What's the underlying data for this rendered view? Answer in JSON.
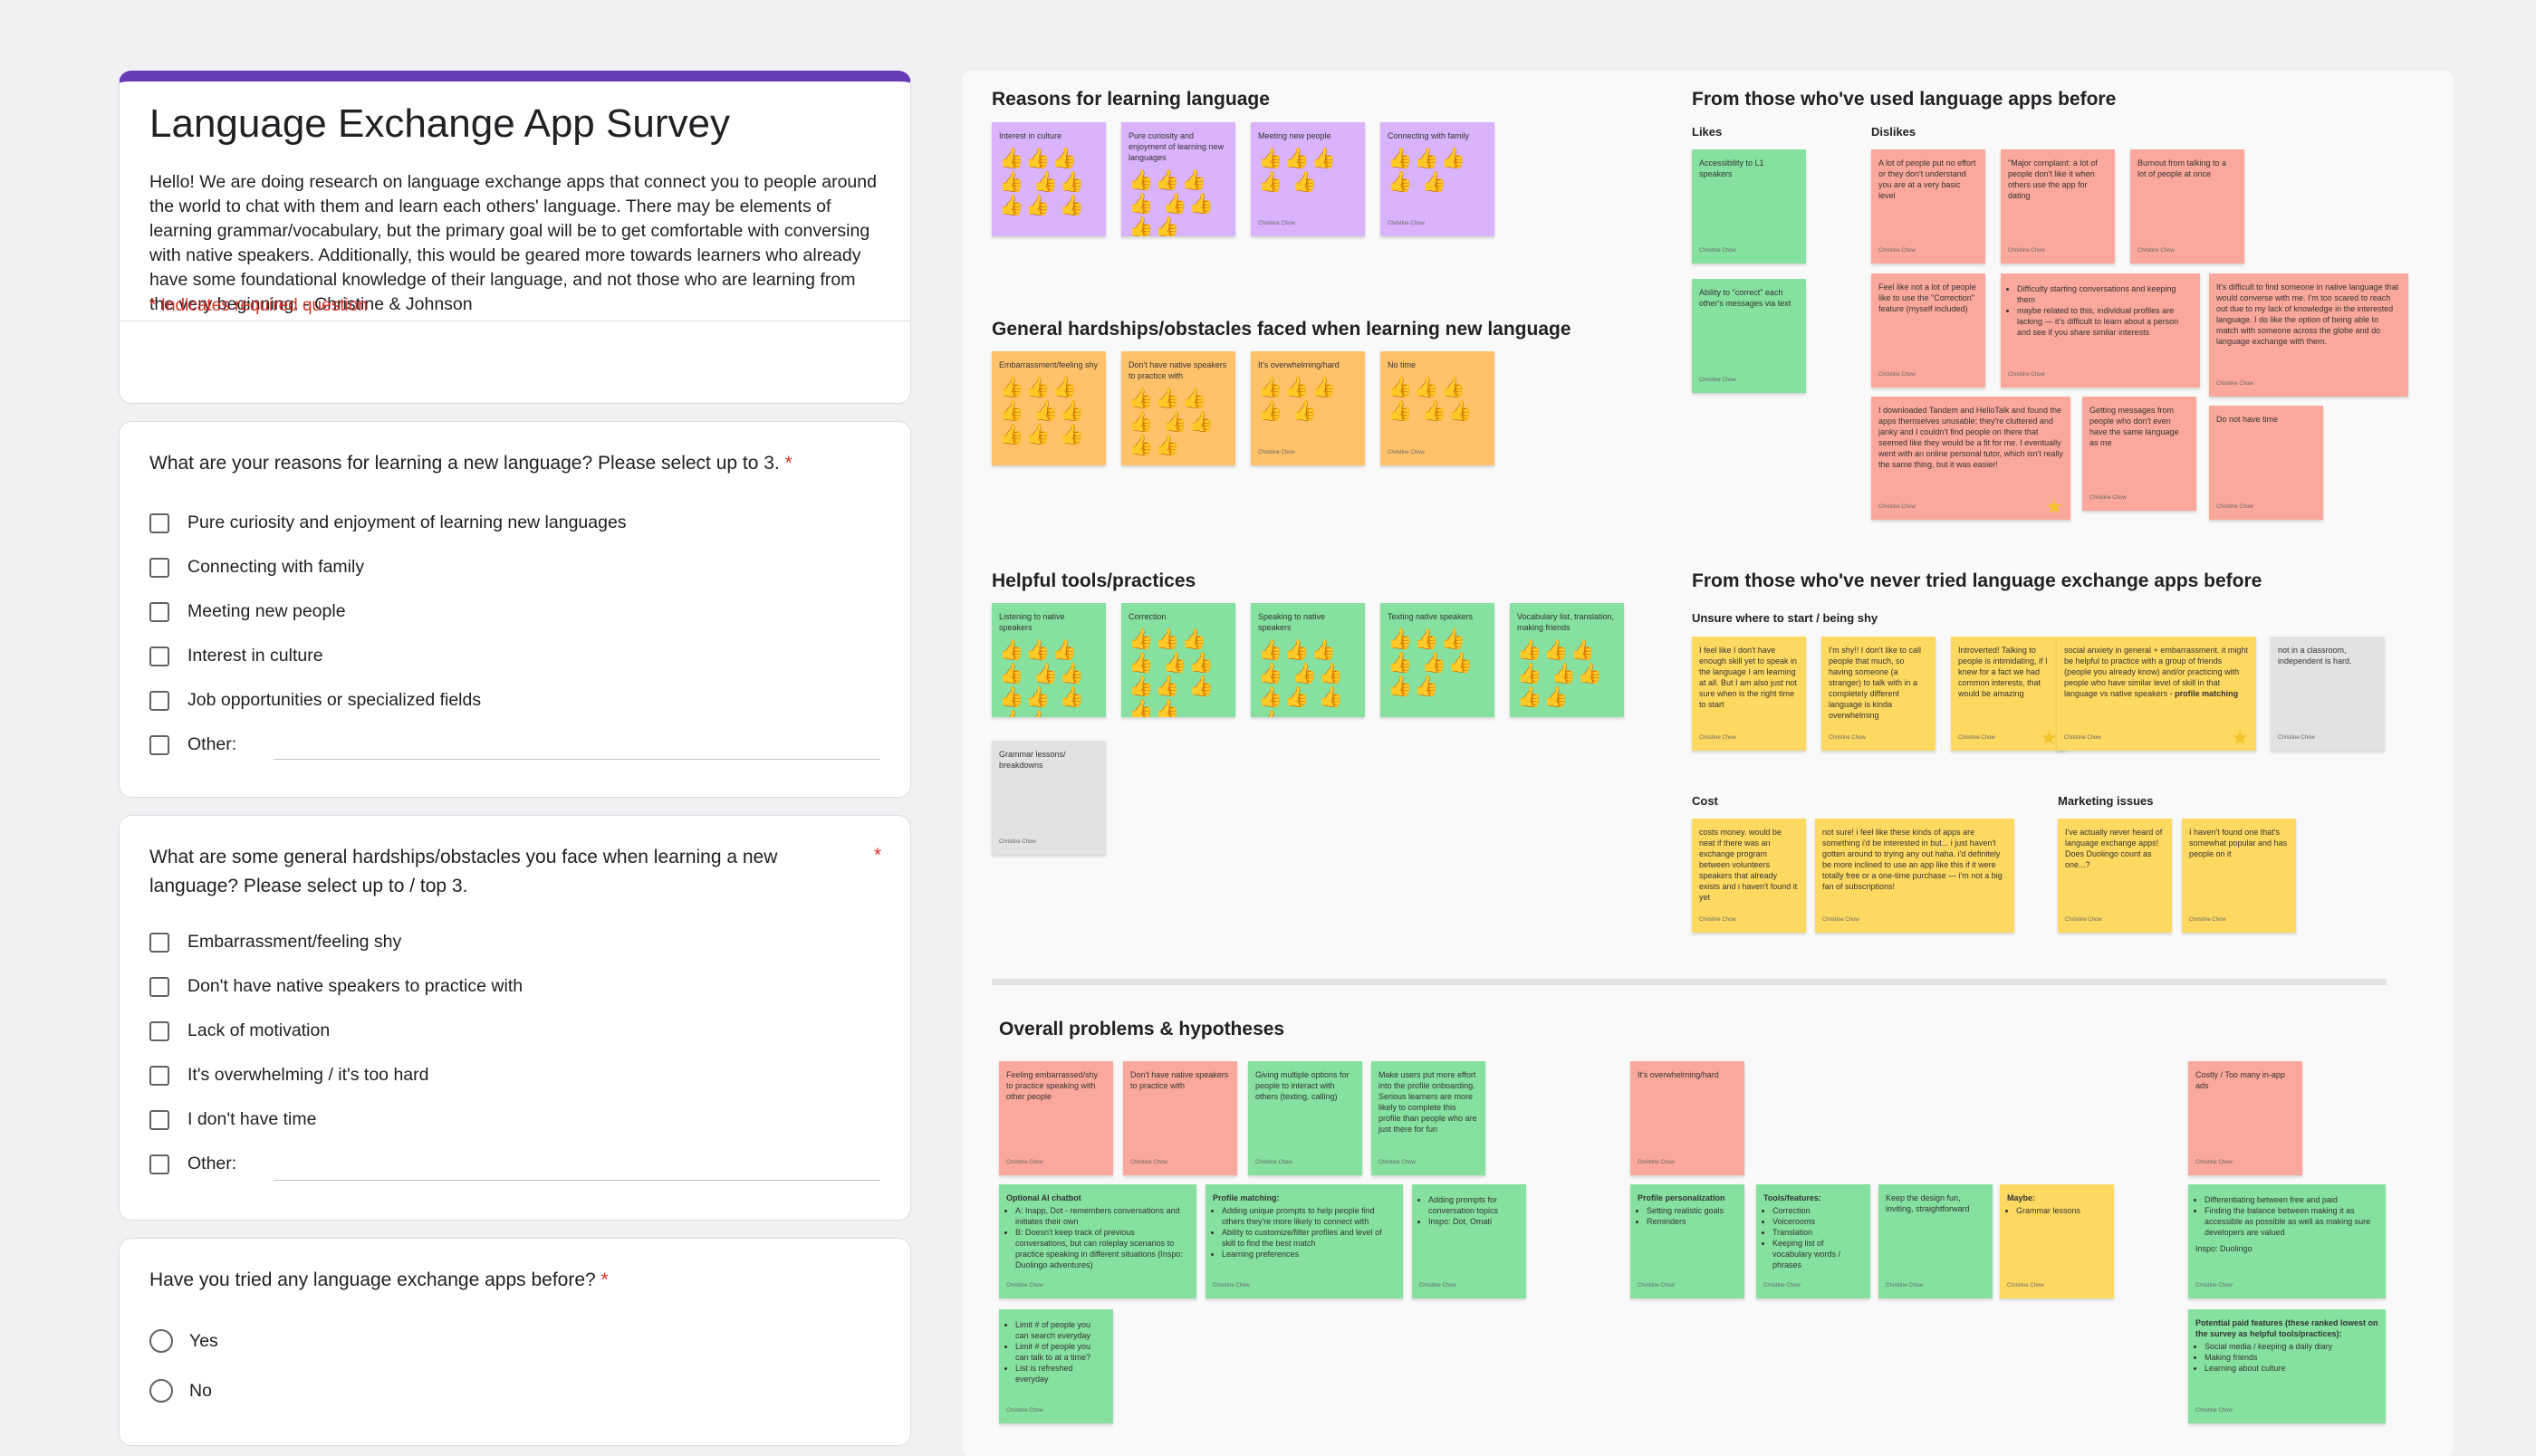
{
  "form": {
    "title": "Language Exchange App Survey",
    "description": "Hello! We are doing research on language exchange apps that connect you to people around the world to chat with them and learn each others' language. There may be elements of learning grammar/vocabulary, but the primary goal will be to get comfortable with conversing with native speakers. Additionally, this would be geared more towards learners who already have some foundational knowledge of their language, and not those who are learning from the very beginning. - Christine & Johnson",
    "required_note": "* Indicates required question",
    "required_star": "*",
    "q1": {
      "text": "What are your reasons for learning a new language? Please select up to 3.",
      "options": [
        "Pure curiosity and enjoyment of learning new languages",
        "Connecting with family",
        "Meeting new people",
        "Interest in culture",
        "Job opportunities or specialized fields",
        "Other:"
      ]
    },
    "q2": {
      "text": "What are some general hardships/obstacles you face when learning a new language? Please select up to / top 3.",
      "options": [
        "Embarrassment/feeling shy",
        "Don't have native speakers to practice with",
        "Lack of motivation",
        "It's overwhelming / it's too hard",
        "I don't have time",
        "Other:"
      ]
    },
    "q3": {
      "text": "Have you tried any language exchange apps before?",
      "options": [
        "Yes",
        "No"
      ]
    }
  },
  "board": {
    "author": "Christine Chow",
    "colors": {
      "purple": "#d9b3fb",
      "orange": "#ffc26b",
      "green": "#86e0a0",
      "red": "#fba89c",
      "yellow": "#fed961",
      "gray": "#e2e2e2"
    },
    "reasons": {
      "title": "Reasons for learning language",
      "notes": [
        "Interest in culture",
        "Pure curiosity and enjoyment of learning new languages",
        "Meeting new people",
        "Connecting with family"
      ]
    },
    "hardships": {
      "title": "General hardships/obstacles faced when learning new language",
      "notes": [
        "Embarrassment/feeling shy",
        "Don't have native speakers to practice with",
        "It's overwhelming/hard",
        "No time"
      ]
    },
    "tools": {
      "title": "Helpful tools/practices",
      "notes": [
        "Listening to native speakers",
        "Correction",
        "Speaking to native speakers",
        "Texting native speakers",
        "Vocabulary list, translation, making friends",
        "Grammar lessons/ breakdowns"
      ]
    },
    "used": {
      "title": "From those who've used language apps before",
      "likes_label": "Likes",
      "dislikes_label": "Dislikes",
      "likes": [
        "Accessibility to L1 speakers",
        "Ability to \"correct\" each other's messages via text"
      ],
      "dislikes": [
        "A lot of people put no effort or they don't understand you are at a very basic level",
        "\"Major complaint: a lot of people don't like it when others use the app for dating",
        "Burnout from talking to a lot of people at once",
        "Feel like not a lot of people like to use the \"Correction\" feature (myself included)",
        "maybe related to this, individual profiles are lacking — it's difficult to learn about a person and see if you share similar interests",
        "It's difficult to find someone in native language that would converse with me. I'm too scared to reach out due to my lack of knowledge in the interested language. I do like the option of being able to match with someone across the globe and do language exchange with them.",
        "I downloaded Tandem and HelloTalk and found the apps themselves unusable; they're cluttered and janky and I couldn't find people on there that seemed like they would be a fit for me. I eventually went with an online personal tutor, which isn't really the same thing, but it was easier!",
        "Getting messages from people who don't even have the same language as me",
        "Do not have time"
      ],
      "dislike_bullet": "Difficulty starting conversations and keeping them"
    },
    "never": {
      "title": "From those who've never tried language exchange apps before",
      "unsure_label": "Unsure where to start / being shy",
      "unsure": [
        "I feel like I don't have enough skill yet to speak in the language I am learning at all. But I am also just not sure when is the right time to start",
        "I'm shy!! I don't like to call people that much, so having someone (a stranger) to talk with in a completely different language is kinda overwhelming",
        "Introverted! Talking to people is intimidating, if I knew for a fact we had common interests, that would be amazing",
        "social anxiety in general + embarrassment. it might be helpful to practice with a group of friends (people you already know) and/or practicing with people who have similar level of skill in that language vs native speakers -",
        "not in a classroom, independent is hard."
      ],
      "unsure_bold": "profile matching",
      "cost_label": "Cost",
      "cost": [
        "costs money. would be neat if there was an exchange program between volunteers speakers that already exists and i haven't found it yet",
        "not sure! i feel like these kinds of apps are something i'd be interested in but... i just haven't gotten around to trying any out haha. i'd definitely be more inclined to use an app like this if it were totally free or a one-time purchase — i'm not a big fan of subscriptions!"
      ],
      "marketing_label": "Marketing issues",
      "marketing": [
        "I've actually never heard of language exchange apps! Does Duolingo count as one...?",
        "I haven't found one that's somewhat popular and has people on it"
      ]
    },
    "overall": {
      "title": "Overall problems & hypotheses",
      "problems": [
        "Feeling embarrassed/shy to practice speaking with other people",
        "Don't have native speakers to practice with",
        "Giving multiple options for people to interact with others (texting, calling)",
        "Make users put more effort into the profile onboarding. Serious learners are more likely to complete this profile than people who are just there for fun",
        "It's overwhelming/hard",
        "Costly / Too many in-app ads"
      ],
      "ai": {
        "title": "Optional AI chatbot",
        "items": [
          "A: Inapp, Dot - remembers conversations and initiates their own",
          "B: Doesn't keep track of previous conversations, but can roleplay scenarios to practice speaking in different situations (Inspo: Duolingo adventures)"
        ]
      },
      "matching": {
        "title": "Profile matching:",
        "items": [
          "Adding unique prompts to help people find others they're more likely to connect with",
          "Ability to customize/filter profiles and level of skill to find the best match",
          "Learning preferences"
        ]
      },
      "prompts": {
        "items": [
          "Adding prompts for conversation topics",
          "Inspo: Dot, Omati"
        ]
      },
      "limits": {
        "items": [
          "Limit # of people you can search everyday",
          "Limit # of people you can talk to at a time?",
          "List is refreshed everyday"
        ]
      },
      "personal": {
        "title": "Profile personalization",
        "items": [
          "Setting realistic goals",
          "Reminders"
        ]
      },
      "features": {
        "title": "Tools/features:",
        "items": [
          "Correction",
          "Voicerooms",
          "Translation",
          "Keeping list of vocabulary words / phrases"
        ]
      },
      "design": "Keep the design fun, inviting, straightforward",
      "maybe": {
        "title": "Maybe:",
        "items": [
          "Grammar lessons"
        ]
      },
      "balance": {
        "items": [
          "Differentiating between free and paid",
          "Finding the balance between making it as accessible as possible as well as making sure developers are valued"
        ],
        "inspo": "Inspo: Duolingo"
      },
      "paid": {
        "title": "Potential paid features (these ranked lowest on the survey as helpful tools/practices):",
        "items": [
          "Social media / keeping a daily diary",
          "Making friends",
          "Learning about culture"
        ]
      }
    }
  }
}
